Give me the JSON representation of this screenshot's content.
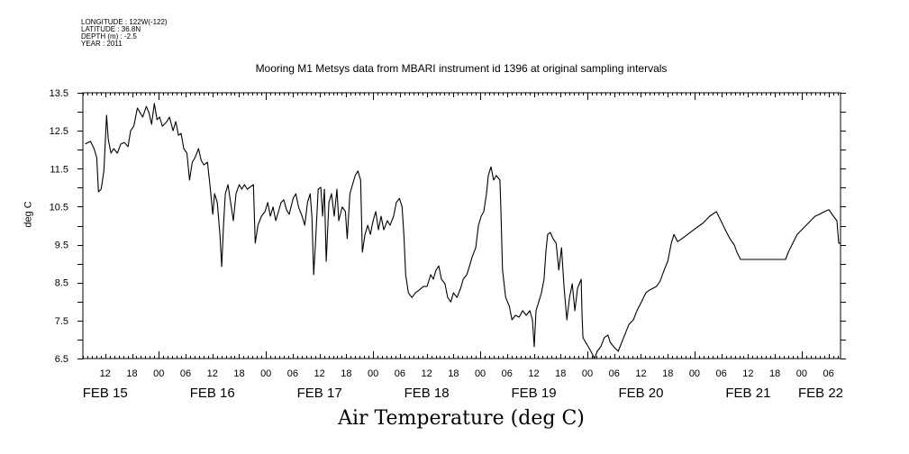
{
  "header": {
    "longitude": "LONGITUDE : 122W(-122)",
    "latitude": "LATITUDE : 36.8N",
    "depth": "DEPTH (m) : -2.5",
    "year": "YEAR : 2011"
  },
  "chart_data": {
    "type": "line",
    "title": "Mooring M1 Metsys data from MBARI instrument id 1396 at original sampling intervals",
    "xlabel": "Air Temperature (deg C)",
    "ylabel": "deg C",
    "x_units": "hours since FEB 15 00:00 (2011)",
    "xlim": [
      7,
      176.7
    ],
    "ylim": [
      6.5,
      13.5
    ],
    "yticks": [
      "6.5",
      "7.5",
      "8.5",
      "9.5",
      "10.5",
      "11.5",
      "12.5",
      "13.5"
    ],
    "xtick_hour_labels": [
      "12",
      "18",
      "00",
      "06",
      "12",
      "18",
      "00",
      "06",
      "12",
      "18",
      "00",
      "06",
      "12",
      "18",
      "00",
      "06",
      "12",
      "18",
      "00",
      "06",
      "12",
      "18",
      "00",
      "06",
      "12",
      "18",
      "00",
      "06",
      "12"
    ],
    "day_labels": [
      "FEB 15",
      "FEB 16",
      "FEB 17",
      "FEB 18",
      "FEB 19",
      "FEB 20",
      "FEB 21",
      "FEB 22"
    ],
    "grid": false,
    "series": [
      {
        "name": "Air Temperature",
        "color": "#000000",
        "x": [
          7.5,
          8.7,
          9.5,
          10.1,
          10.5,
          11.1,
          11.7,
          12.3,
          12.7,
          13.3,
          13.9,
          14.7,
          15.5,
          16.3,
          17.1,
          17.7,
          18.4,
          19.2,
          19.8,
          20.4,
          21.2,
          21.8,
          22.4,
          23.0,
          23.6,
          24.2,
          24.8,
          25.8,
          26.4,
          27.2,
          27.8,
          28.4,
          29.0,
          29.6,
          30.3,
          30.9,
          31.5,
          32.1,
          32.9,
          33.5,
          34.1,
          34.9,
          35.5,
          36.1,
          36.5,
          37.1,
          37.7,
          38.1,
          38.5,
          38.9,
          39.5,
          40.1,
          40.7,
          41.3,
          42.0,
          42.6,
          43.2,
          43.8,
          45.2,
          45.6,
          46.2,
          47.0,
          47.8,
          48.4,
          49.0,
          49.6,
          50.2,
          50.8,
          51.4,
          52.0,
          52.6,
          53.2,
          54.1,
          54.7,
          55.3,
          56.1,
          56.7,
          57.3,
          57.9,
          58.3,
          58.7,
          59.1,
          59.7,
          60.3,
          60.7,
          61.1,
          61.5,
          62.1,
          62.7,
          63.3,
          63.9,
          64.3,
          65.1,
          65.8,
          66.2,
          66.8,
          67.4,
          68.0,
          68.6,
          69.2,
          69.6,
          70.2,
          70.8,
          71.4,
          72.0,
          72.6,
          73.2,
          73.8,
          74.4,
          75.2,
          75.8,
          76.6,
          77.2,
          77.9,
          78.5,
          78.9,
          79.3,
          79.9,
          80.7,
          81.5,
          82.3,
          83.3,
          84.1,
          84.9,
          85.5,
          86.1,
          86.7,
          87.3,
          88.1,
          88.7,
          89.4,
          90.0,
          90.8,
          91.6,
          92.2,
          93.0,
          93.6,
          94.2,
          95.0,
          95.6,
          96.2,
          96.8,
          97.4,
          97.8,
          98.4,
          99.0,
          99.6,
          100.4,
          100.6,
          101.0,
          101.7,
          102.5,
          103.1,
          103.9,
          104.7,
          105.5,
          106.3,
          107.1,
          107.7,
          108.1,
          108.5,
          109.1,
          109.7,
          110.3,
          110.7,
          111.1,
          111.7,
          112.3,
          113.0,
          113.6,
          114.2,
          114.8,
          115.4,
          116.0,
          116.6,
          117.2,
          117.8,
          118.6,
          118.8,
          119.0,
          119.6,
          120.2,
          121.0,
          121.6,
          122.2,
          123.0,
          123.8,
          124.6,
          125.1,
          125.9,
          126.9,
          127.7,
          128.5,
          129.3,
          130.3,
          131.1,
          132.1,
          133.1,
          133.9,
          134.7,
          135.5,
          136.3,
          137.2,
          138.0,
          138.8,
          139.4,
          140.2,
          141.2,
          142.0,
          143.8,
          145.8,
          147.4,
          148.9,
          149.9,
          150.9,
          151.9,
          152.9,
          153.5,
          154.3,
          160.0,
          164.4,
          165.0,
          166.0,
          167.0,
          168.0,
          169.0,
          170.0,
          171.0,
          172.0,
          173.1,
          174.1,
          175.1,
          175.9,
          176.3,
          176.7
        ],
        "y": [
          12.15,
          12.22,
          12.03,
          11.79,
          10.89,
          10.96,
          11.44,
          12.91,
          12.27,
          11.91,
          12.03,
          11.91,
          12.15,
          12.19,
          12.08,
          12.5,
          12.62,
          13.1,
          12.98,
          12.86,
          13.14,
          12.98,
          12.67,
          13.22,
          12.79,
          12.86,
          12.62,
          12.74,
          12.86,
          12.5,
          12.74,
          12.38,
          12.43,
          12.03,
          11.91,
          11.2,
          11.67,
          11.79,
          12.03,
          11.72,
          11.6,
          11.67,
          11.03,
          10.3,
          10.84,
          10.61,
          9.77,
          8.92,
          10.01,
          10.84,
          11.08,
          10.61,
          10.13,
          10.84,
          11.08,
          10.96,
          11.08,
          10.96,
          11.08,
          9.54,
          10.01,
          10.25,
          10.37,
          10.61,
          10.25,
          10.49,
          10.13,
          10.37,
          10.61,
          10.68,
          10.42,
          10.3,
          10.72,
          10.84,
          10.49,
          10.25,
          10.01,
          10.61,
          10.84,
          10.25,
          8.71,
          9.54,
          10.96,
          11.01,
          10.25,
          10.96,
          9.06,
          10.61,
          10.84,
          10.25,
          10.96,
          10.13,
          10.49,
          10.37,
          9.66,
          10.84,
          11.08,
          11.32,
          11.44,
          11.2,
          9.3,
          9.77,
          10.01,
          9.77,
          10.13,
          10.37,
          9.89,
          10.25,
          9.89,
          10.13,
          10.01,
          10.25,
          10.61,
          10.72,
          10.49,
          9.77,
          8.71,
          8.23,
          8.11,
          8.23,
          8.3,
          8.4,
          8.4,
          8.71,
          8.59,
          8.83,
          8.94,
          8.59,
          8.47,
          8.11,
          7.99,
          8.23,
          8.11,
          8.35,
          8.59,
          8.71,
          8.94,
          9.18,
          9.42,
          10.01,
          10.25,
          10.37,
          10.84,
          11.32,
          11.55,
          11.2,
          11.32,
          11.2,
          10.49,
          8.83,
          8.11,
          7.88,
          7.52,
          7.64,
          7.59,
          7.76,
          7.64,
          7.76,
          7.52,
          6.81,
          7.76,
          7.99,
          8.23,
          8.59,
          9.3,
          9.77,
          9.82,
          9.66,
          9.54,
          8.83,
          9.42,
          8.35,
          7.52,
          8.11,
          8.47,
          7.76,
          8.35,
          8.59,
          7.64,
          7.05,
          6.93,
          6.81,
          6.64,
          6.5,
          6.69,
          6.81,
          7.05,
          7.12,
          6.93,
          6.81,
          6.69,
          6.93,
          7.16,
          7.4,
          7.52,
          7.76,
          7.99,
          8.23,
          8.3,
          8.35,
          8.4,
          8.54,
          8.83,
          9.06,
          9.54,
          9.77,
          9.58,
          9.66,
          9.73,
          9.89,
          10.06,
          10.25,
          10.37,
          10.13,
          9.89,
          9.66,
          9.49,
          9.3,
          9.11,
          9.11,
          9.11,
          9.3,
          9.54,
          9.77,
          9.89,
          10.01,
          10.13,
          10.25,
          10.3,
          10.37,
          10.42,
          10.25,
          10.13,
          9.54,
          9.54
        ]
      }
    ]
  }
}
